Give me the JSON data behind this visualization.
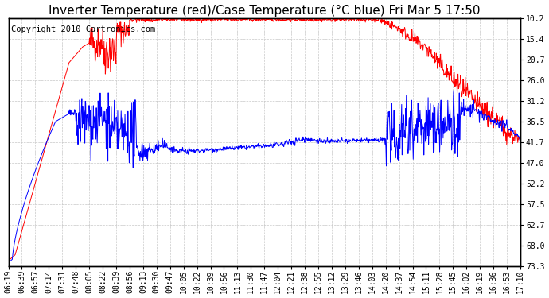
{
  "title": "Inverter Temperature (red)/Case Temperature (°C blue) Fri Mar 5 17:50",
  "copyright": "Copyright 2010 Cartronics.com",
  "ylabel_right": [
    "73.3",
    "68.0",
    "62.7",
    "57.5",
    "52.2",
    "47.0",
    "41.7",
    "36.5",
    "31.2",
    "26.0",
    "20.7",
    "15.4",
    "10.2"
  ],
  "ylim": [
    10.2,
    73.3
  ],
  "yticks": [
    10.2,
    15.4,
    20.7,
    26.0,
    31.2,
    36.5,
    41.7,
    47.0,
    52.2,
    57.5,
    62.7,
    68.0,
    73.3
  ],
  "xtick_labels": [
    "06:19",
    "06:39",
    "06:57",
    "07:14",
    "07:31",
    "07:48",
    "08:05",
    "08:22",
    "08:39",
    "08:56",
    "09:13",
    "09:30",
    "09:47",
    "10:05",
    "10:22",
    "10:39",
    "10:56",
    "11:13",
    "11:30",
    "11:47",
    "12:04",
    "12:21",
    "12:38",
    "12:55",
    "13:12",
    "13:29",
    "13:46",
    "14:03",
    "14:20",
    "14:37",
    "14:54",
    "15:11",
    "15:28",
    "15:45",
    "16:02",
    "16:19",
    "16:36",
    "16:53",
    "17:10"
  ],
  "bg_color": "#ffffff",
  "plot_bg_color": "#ffffff",
  "grid_color": "#c8c8c8",
  "red_color": "#ff0000",
  "blue_color": "#0000ff",
  "title_fontsize": 11,
  "tick_fontsize": 7,
  "copyright_fontsize": 7.5
}
